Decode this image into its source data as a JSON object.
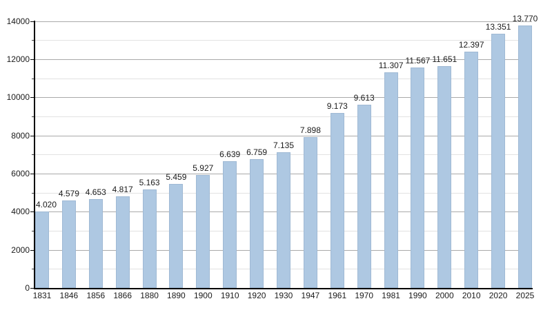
{
  "chart_data": {
    "type": "bar",
    "title": "",
    "xlabel": "",
    "ylabel": "",
    "legend": "none",
    "grid": "horizontal major+minor",
    "background": "#ffffff",
    "categories": [
      "1831",
      "1846",
      "1856",
      "1866",
      "1880",
      "1890",
      "1900",
      "1910",
      "1920",
      "1930",
      "1947",
      "1961",
      "1970",
      "1981",
      "1990",
      "2000",
      "2010",
      "2020",
      "2025"
    ],
    "values": [
      4020,
      4579,
      4653,
      4817,
      5163,
      5459,
      5927,
      6639,
      6759,
      7135,
      7898,
      9173,
      9613,
      11307,
      11567,
      11651,
      12397,
      13351,
      13770
    ],
    "bar_labels": [
      "4.020",
      "4.579",
      "4.653",
      "4.817",
      "5.163",
      "5.459",
      "5.927",
      "6.639",
      "6.759",
      "7.135",
      "7.898",
      "9.173",
      "9.613",
      "11.307",
      "11.567",
      "11.651",
      "12.397",
      "13.351",
      "13.770"
    ],
    "ylim": [
      0,
      14000
    ],
    "y_ticks_major": [
      0,
      2000,
      4000,
      6000,
      8000,
      10000,
      12000,
      14000
    ],
    "y_ticks_minor": [
      1000,
      3000,
      5000,
      7000,
      9000,
      11000,
      13000
    ],
    "colors": {
      "bar_fill": "#aec8e2",
      "bar_border": "#9fb9d4",
      "grid_major": "#a9a9a9",
      "grid_minor": "#e2e2e2",
      "axis": "#000000",
      "text": "#1a1a1a"
    }
  }
}
